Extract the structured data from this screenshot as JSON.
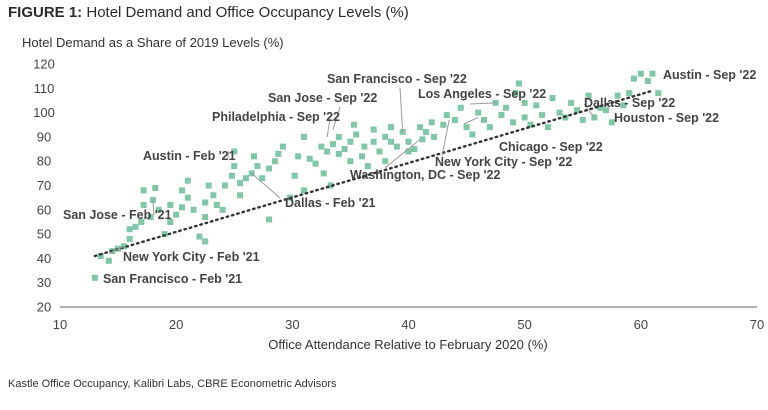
{
  "figure": {
    "label": "FIGURE 1:",
    "title": "Hotel Demand and Office Occupancy Levels (%)",
    "source": "Kastle Office Occupancy, Kalibri Labs, CBRE Econometric Advisors"
  },
  "colors": {
    "point": "#7fc7a6",
    "trend": "#333333",
    "leader": "#9a9a9a",
    "text": "#444444"
  },
  "chart_data": {
    "type": "scatter",
    "title": "Hotel Demand and Office Occupancy Levels (%)",
    "xlabel": "Office Attendance Relative to February 2020 (%)",
    "ylabel": "Hotel Demand as a Share of 2019 Levels (%)",
    "xlim": [
      10,
      70
    ],
    "ylim": [
      20,
      120
    ],
    "xticks": [
      10,
      20,
      30,
      40,
      50,
      60,
      70
    ],
    "yticks": [
      20,
      30,
      40,
      50,
      60,
      70,
      80,
      90,
      100,
      110,
      120
    ],
    "grid": false,
    "trendline": {
      "x": [
        13,
        61
      ],
      "y": [
        41,
        109
      ],
      "style": "dotted"
    },
    "points": [
      [
        13,
        32
      ],
      [
        13.5,
        41
      ],
      [
        14.2,
        39
      ],
      [
        14.5,
        43
      ],
      [
        15,
        44
      ],
      [
        15.5,
        45
      ],
      [
        16,
        48
      ],
      [
        16,
        52
      ],
      [
        16.5,
        53
      ],
      [
        17,
        55
      ],
      [
        17.2,
        62
      ],
      [
        17.2,
        68
      ],
      [
        17.8,
        57
      ],
      [
        18,
        64
      ],
      [
        18.2,
        69
      ],
      [
        18.5,
        60
      ],
      [
        19,
        50
      ],
      [
        19.5,
        55
      ],
      [
        19.5,
        62
      ],
      [
        20,
        58
      ],
      [
        20.5,
        61
      ],
      [
        20.5,
        68
      ],
      [
        21,
        65
      ],
      [
        21,
        72
      ],
      [
        21.5,
        60
      ],
      [
        22,
        49
      ],
      [
        22.5,
        47
      ],
      [
        22.5,
        57
      ],
      [
        22.5,
        63
      ],
      [
        22.8,
        70
      ],
      [
        23.2,
        66
      ],
      [
        23.5,
        62
      ],
      [
        24,
        60
      ],
      [
        24.2,
        70
      ],
      [
        24.8,
        74
      ],
      [
        25,
        78
      ],
      [
        25,
        84
      ],
      [
        25.5,
        66
      ],
      [
        25.5,
        71
      ],
      [
        26,
        73
      ],
      [
        26.5,
        75
      ],
      [
        26.7,
        82
      ],
      [
        27,
        78
      ],
      [
        27.4,
        73
      ],
      [
        28,
        56
      ],
      [
        28,
        77
      ],
      [
        28.5,
        80
      ],
      [
        28.8,
        83
      ],
      [
        29.2,
        86
      ],
      [
        29.8,
        65
      ],
      [
        30.2,
        74
      ],
      [
        30.5,
        82
      ],
      [
        31,
        68
      ],
      [
        31,
        90
      ],
      [
        31.5,
        81
      ],
      [
        32,
        79
      ],
      [
        32.5,
        86
      ],
      [
        32.7,
        75
      ],
      [
        33,
        84
      ],
      [
        33.3,
        70
      ],
      [
        33.5,
        87
      ],
      [
        34,
        83
      ],
      [
        34,
        90
      ],
      [
        34.5,
        85
      ],
      [
        35,
        80
      ],
      [
        35,
        88
      ],
      [
        35.3,
        95
      ],
      [
        35.5,
        91
      ],
      [
        36,
        82
      ],
      [
        36.2,
        86
      ],
      [
        36.5,
        78
      ],
      [
        37,
        88
      ],
      [
        37,
        93
      ],
      [
        37.5,
        84
      ],
      [
        38,
        80
      ],
      [
        38,
        90
      ],
      [
        38.5,
        94
      ],
      [
        38.5,
        88
      ],
      [
        39,
        86
      ],
      [
        39.5,
        92
      ],
      [
        40,
        84
      ],
      [
        40,
        88
      ],
      [
        40.5,
        85
      ],
      [
        41,
        94
      ],
      [
        41.2,
        89
      ],
      [
        41.5,
        92
      ],
      [
        42,
        96
      ],
      [
        42.2,
        90
      ],
      [
        43,
        95
      ],
      [
        43.3,
        99
      ],
      [
        44,
        97
      ],
      [
        44.5,
        102
      ],
      [
        45,
        94
      ],
      [
        45.5,
        91
      ],
      [
        46,
        100
      ],
      [
        46.5,
        97
      ],
      [
        47,
        94
      ],
      [
        47.5,
        104
      ],
      [
        48,
        99
      ],
      [
        48.4,
        102
      ],
      [
        49,
        96
      ],
      [
        49.2,
        108
      ],
      [
        49.5,
        112
      ],
      [
        50,
        98
      ],
      [
        50,
        104
      ],
      [
        50.5,
        95
      ],
      [
        51,
        103
      ],
      [
        51.5,
        99
      ],
      [
        52,
        94
      ],
      [
        52.4,
        106
      ],
      [
        53,
        100
      ],
      [
        53.5,
        98
      ],
      [
        54,
        104
      ],
      [
        54.5,
        101
      ],
      [
        55,
        97
      ],
      [
        55.5,
        107
      ],
      [
        56,
        98
      ],
      [
        56.5,
        102
      ],
      [
        57,
        101
      ],
      [
        57.5,
        96
      ],
      [
        58,
        107
      ],
      [
        58.5,
        103
      ],
      [
        59,
        108
      ],
      [
        59.4,
        114
      ],
      [
        60,
        116
      ],
      [
        60.6,
        113
      ],
      [
        61,
        116
      ],
      [
        61.5,
        108
      ]
    ],
    "annotations": [
      {
        "text": "Austin - Sep '22",
        "x": 61,
        "y": 116
      },
      {
        "text": "San Francisco - Sep '22",
        "x": 39.5,
        "y": 92
      },
      {
        "text": "Los Angeles - Sep '22",
        "x": 47.5,
        "y": 104
      },
      {
        "text": "San Jose - Sep '22",
        "x": 33.5,
        "y": 93
      },
      {
        "text": "Dallas - Sep '22",
        "x": 56,
        "y": 98
      },
      {
        "text": "Philadelphia - Sep '22",
        "x": 33,
        "y": 90
      },
      {
        "text": "Houston - Sep '22",
        "x": 57.5,
        "y": 96
      },
      {
        "text": "Chicago - Sep '22",
        "x": 46,
        "y": 98
      },
      {
        "text": "Austin - Feb '21",
        "x": 24.5,
        "y": 84
      },
      {
        "text": "New York City - Sep '22",
        "x": 43.5,
        "y": 97
      },
      {
        "text": "Washington, DC - Sep '22",
        "x": 41,
        "y": 89
      },
      {
        "text": "Dallas - Feb '21",
        "x": 26.5,
        "y": 75
      },
      {
        "text": "San Jose - Feb '21",
        "x": 18,
        "y": 64
      },
      {
        "text": "New York City - Feb '21",
        "x": 15.5,
        "y": 45
      },
      {
        "text": "San Francisco - Feb '21",
        "x": 13,
        "y": 32
      }
    ]
  }
}
